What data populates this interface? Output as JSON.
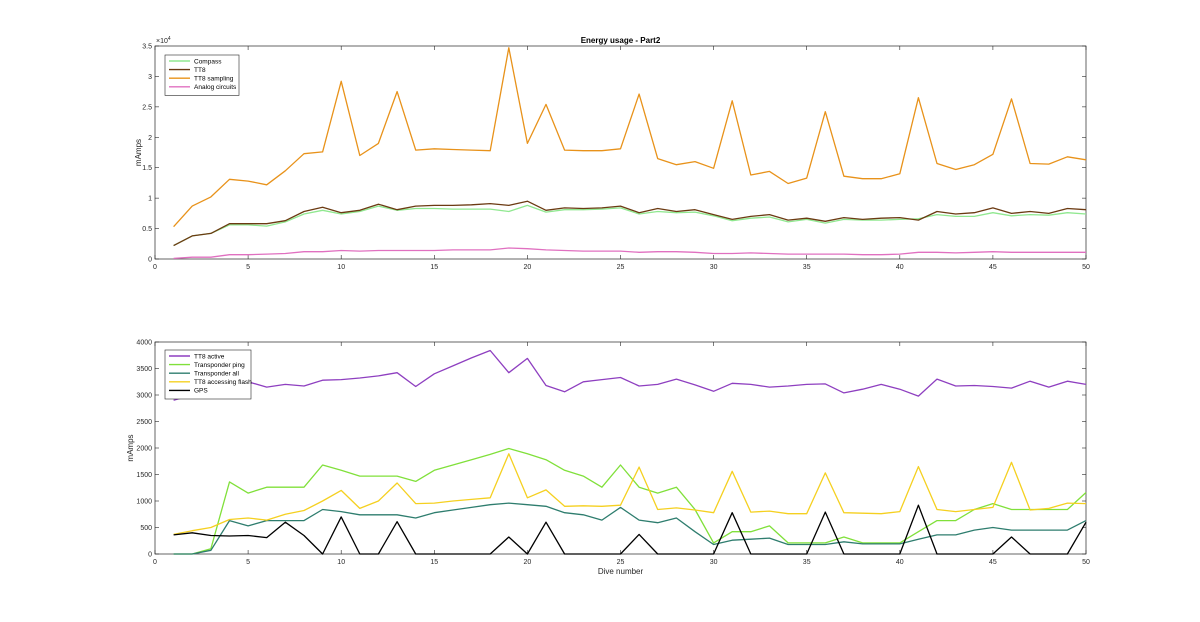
{
  "chart_data": [
    {
      "type": "line",
      "title": "Energy usage - Part2",
      "xlabel": "",
      "ylabel": "mAmps",
      "exponent_label": "×10",
      "exponent_power": "4",
      "xlim": [
        0,
        50
      ],
      "ylim": [
        0,
        35000
      ],
      "xticks": [
        0,
        5,
        10,
        15,
        20,
        25,
        30,
        35,
        40,
        45,
        50
      ],
      "yticks": [
        0,
        5000,
        10000,
        15000,
        20000,
        25000,
        30000,
        35000
      ],
      "ytick_labels": [
        "0",
        "0.5",
        "1",
        "1.5",
        "2",
        "2.5",
        "3",
        "3.5"
      ],
      "grid": false,
      "legend_position": "top-left",
      "x": [
        1,
        2,
        3,
        4,
        5,
        6,
        7,
        8,
        9,
        10,
        11,
        12,
        13,
        14,
        15,
        16,
        17,
        18,
        19,
        20,
        21,
        22,
        23,
        24,
        25,
        26,
        27,
        28,
        29,
        30,
        31,
        32,
        33,
        34,
        35,
        36,
        37,
        38,
        39,
        40,
        41,
        42,
        43,
        44,
        45,
        46,
        47,
        48,
        49,
        50
      ],
      "series": [
        {
          "name": "Compass",
          "color": "#90e890",
          "values": [
            2200,
            3800,
            4200,
            5600,
            5600,
            5400,
            6100,
            7400,
            8000,
            7400,
            7800,
            8700,
            8000,
            8300,
            8300,
            8200,
            8200,
            8200,
            7800,
            8800,
            7700,
            8100,
            8100,
            8200,
            8400,
            7400,
            7800,
            7600,
            7700,
            7100,
            6300,
            6700,
            6900,
            6100,
            6500,
            5900,
            6500,
            6400,
            6400,
            6500,
            6600,
            7300,
            7000,
            7000,
            7600,
            7100,
            7300,
            7200,
            7600,
            7400
          ]
        },
        {
          "name": "TT8",
          "color": "#6b3a12",
          "values": [
            2200,
            3800,
            4200,
            5800,
            5800,
            5800,
            6300,
            7800,
            8500,
            7600,
            8000,
            9000,
            8100,
            8700,
            8800,
            8800,
            8900,
            9100,
            8800,
            9500,
            8000,
            8400,
            8300,
            8400,
            8700,
            7600,
            8300,
            7800,
            8100,
            7300,
            6500,
            7000,
            7300,
            6400,
            6700,
            6200,
            6800,
            6500,
            6700,
            6800,
            6400,
            7800,
            7400,
            7600,
            8400,
            7500,
            7800,
            7500,
            8300,
            8100
          ]
        },
        {
          "name": "TT8 sampling",
          "color": "#e8921a",
          "values": [
            5300,
            8700,
            10200,
            13100,
            12800,
            12200,
            14500,
            17300,
            17600,
            29200,
            17000,
            19000,
            27500,
            17900,
            18100,
            18000,
            17900,
            17800,
            34700,
            19000,
            25400,
            17900,
            17800,
            17800,
            18100,
            27100,
            16500,
            15500,
            16000,
            14900,
            26000,
            13800,
            14400,
            12400,
            13300,
            24200,
            13600,
            13200,
            13200,
            14000,
            26500,
            15700,
            14700,
            15500,
            17200,
            26300,
            15700,
            15600,
            16800,
            16300
          ]
        },
        {
          "name": "Analog circuits",
          "color": "#e070c0",
          "values": [
            100,
            300,
            300,
            700,
            700,
            800,
            900,
            1200,
            1200,
            1400,
            1300,
            1400,
            1400,
            1400,
            1400,
            1500,
            1500,
            1500,
            1800,
            1700,
            1500,
            1400,
            1300,
            1300,
            1300,
            1100,
            1200,
            1200,
            1100,
            900,
            900,
            1000,
            900,
            800,
            800,
            800,
            800,
            700,
            700,
            800,
            1100,
            1100,
            1000,
            1100,
            1200,
            1100,
            1100,
            1100,
            1100,
            1100
          ]
        }
      ]
    },
    {
      "type": "line",
      "title": "",
      "xlabel": "Dive number",
      "ylabel": "mAmps",
      "xlim": [
        0,
        50
      ],
      "ylim": [
        0,
        4000
      ],
      "xticks": [
        0,
        5,
        10,
        15,
        20,
        25,
        30,
        35,
        40,
        45,
        50
      ],
      "yticks": [
        0,
        500,
        1000,
        1500,
        2000,
        2500,
        3000,
        3500,
        4000
      ],
      "ytick_labels": [
        "0",
        "500",
        "1000",
        "1500",
        "2000",
        "2500",
        "3000",
        "3500",
        "4000"
      ],
      "grid": false,
      "legend_position": "top-left",
      "x": [
        1,
        2,
        3,
        4,
        5,
        6,
        7,
        8,
        9,
        10,
        11,
        12,
        13,
        14,
        15,
        16,
        17,
        18,
        19,
        20,
        21,
        22,
        23,
        24,
        25,
        26,
        27,
        28,
        29,
        30,
        31,
        32,
        33,
        34,
        35,
        36,
        37,
        38,
        39,
        40,
        41,
        42,
        43,
        44,
        45,
        46,
        47,
        48,
        49,
        50
      ],
      "series": [
        {
          "name": "TT8 active",
          "color": "#8e3fc0",
          "values": [
            2900,
            3000,
            3150,
            3250,
            3250,
            3150,
            3200,
            3170,
            3280,
            3290,
            3320,
            3360,
            3420,
            3160,
            3400,
            3550,
            3700,
            3840,
            3420,
            3690,
            3180,
            3060,
            3250,
            3290,
            3330,
            3170,
            3200,
            3300,
            3190,
            3070,
            3220,
            3200,
            3150,
            3170,
            3200,
            3210,
            3040,
            3110,
            3200,
            3110,
            2980,
            3300,
            3170,
            3180,
            3160,
            3130,
            3260,
            3150,
            3260,
            3200
          ]
        },
        {
          "name": "Transponder ping",
          "color": "#80e03a",
          "values": [
            0,
            0,
            100,
            1360,
            1150,
            1260,
            1260,
            1260,
            1680,
            1580,
            1470,
            1470,
            1470,
            1370,
            1580,
            1680,
            1780,
            1880,
            1990,
            1890,
            1780,
            1580,
            1470,
            1260,
            1680,
            1260,
            1150,
            1260,
            840,
            210,
            420,
            420,
            530,
            210,
            210,
            210,
            320,
            210,
            210,
            210,
            420,
            630,
            630,
            840,
            950,
            840,
            840,
            840,
            840,
            1160
          ]
        },
        {
          "name": "Transponder all",
          "color": "#2e7d6e",
          "values": [
            0,
            0,
            70,
            630,
            530,
            630,
            630,
            630,
            840,
            800,
            740,
            740,
            740,
            680,
            780,
            830,
            880,
            930,
            960,
            930,
            900,
            780,
            740,
            640,
            880,
            640,
            590,
            680,
            420,
            180,
            260,
            280,
            300,
            180,
            180,
            180,
            230,
            190,
            190,
            190,
            280,
            360,
            360,
            450,
            500,
            450,
            450,
            450,
            450,
            630
          ]
        },
        {
          "name": "TT8 accessing flash",
          "color": "#f5d020",
          "values": [
            370,
            440,
            500,
            650,
            680,
            640,
            750,
            820,
            1000,
            1200,
            860,
            1000,
            1340,
            950,
            960,
            1000,
            1030,
            1060,
            1890,
            1060,
            1210,
            900,
            910,
            900,
            920,
            1640,
            840,
            870,
            830,
            780,
            1560,
            790,
            810,
            760,
            760,
            1530,
            780,
            770,
            760,
            800,
            1650,
            840,
            800,
            840,
            880,
            1730,
            830,
            860,
            960,
            950
          ]
        },
        {
          "name": "GPS",
          "color": "#000000",
          "values": [
            360,
            400,
            350,
            340,
            350,
            310,
            600,
            350,
            0,
            700,
            0,
            0,
            610,
            0,
            0,
            0,
            0,
            0,
            320,
            0,
            600,
            0,
            0,
            0,
            0,
            370,
            0,
            0,
            0,
            0,
            780,
            0,
            0,
            0,
            0,
            790,
            0,
            0,
            0,
            0,
            920,
            0,
            0,
            0,
            0,
            320,
            0,
            0,
            0,
            600
          ]
        }
      ]
    }
  ]
}
